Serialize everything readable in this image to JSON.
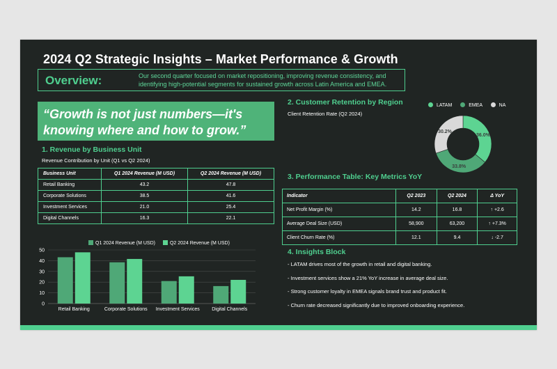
{
  "title": "2024 Q2 Strategic Insights – Market Performance & Growth",
  "overview": {
    "label": "Overview:",
    "text": "Our second quarter focused on market repositioning, improving revenue consistency, and identifying high-potential segments for sustained growth across Latin America and EMEA."
  },
  "quote": "“Growth is not just numbers—it's knowing where and how to grow.”",
  "revenue": {
    "heading": "1. Revenue by Business Unit",
    "subtitle": "Revenue Contribution by Unit (Q1 vs Q2 2024)",
    "columns": [
      "Business Unit",
      "Q1 2024 Revenue (M USD)",
      "Q2 2024 Revenue (M USD)"
    ],
    "rows": [
      [
        "Retail Banking",
        "43.2",
        "47.8"
      ],
      [
        "Corporate Solutions",
        "38.5",
        "41.6"
      ],
      [
        "Investment Services",
        "21.0",
        "25.4"
      ],
      [
        "Digital Channels",
        "16.3",
        "22.1"
      ]
    ]
  },
  "retention": {
    "heading": "2. Customer Retention by Region",
    "subtitle": "Client Retention Rate (Q2 2024)"
  },
  "performance": {
    "heading": "3. Performance Table: Key Metrics YoY",
    "columns": [
      "Indicator",
      "Q2 2023",
      "Q2 2024",
      "Δ YoY"
    ],
    "rows": [
      [
        "Net Profit Margin (%)",
        "14.2",
        "16.8",
        "↑ +2.6"
      ],
      [
        "Average Deal Size (USD)",
        "58,900",
        "63,200",
        "↑ +7.3%"
      ],
      [
        "Client Churn Rate (%)",
        "12.1",
        "9.4",
        "↓ -2.7"
      ]
    ]
  },
  "insights": {
    "heading": "4. Insights Block",
    "items": [
      "- LATAM drives most of the growth in retail and digital banking.",
      "- Investment services show a 21% YoY increase in average deal size.",
      "- Strong customer loyalty in EMEA signals brand trust and product fit.",
      "- Churn rate decreased significantly due to improved onboarding experience."
    ]
  },
  "colors": {
    "background": "#202523",
    "accent": "#4fcf8f",
    "q1_series": "#4fa877",
    "q2_series": "#5dd492",
    "na_slice": "#d9d9d9"
  },
  "chart_data": [
    {
      "type": "bar",
      "categories": [
        "Retail Banking",
        "Corporate Solutions",
        "Investment Services",
        "Digital Channels"
      ],
      "series": [
        {
          "name": "Q1 2024 Revenue (M USD)",
          "values": [
            43.2,
            38.5,
            21.0,
            16.3
          ],
          "color": "#4fa877"
        },
        {
          "name": "Q2 2024 Revenue (M USD)",
          "values": [
            47.8,
            41.6,
            25.4,
            22.1
          ],
          "color": "#5dd492"
        }
      ],
      "ylim": [
        0,
        50
      ],
      "yticks": [
        0,
        10,
        20,
        30,
        40,
        50
      ],
      "grid": true,
      "legend": "top"
    },
    {
      "type": "pie",
      "variant": "donut",
      "labels": [
        "LATAM",
        "EMEA",
        "NA"
      ],
      "values": [
        36.0,
        33.8,
        30.2
      ],
      "value_labels": [
        "36.0%",
        "33.8%",
        "30.2%"
      ],
      "colors": [
        "#5dd492",
        "#4fa877",
        "#d9d9d9"
      ],
      "legend": "top"
    }
  ]
}
